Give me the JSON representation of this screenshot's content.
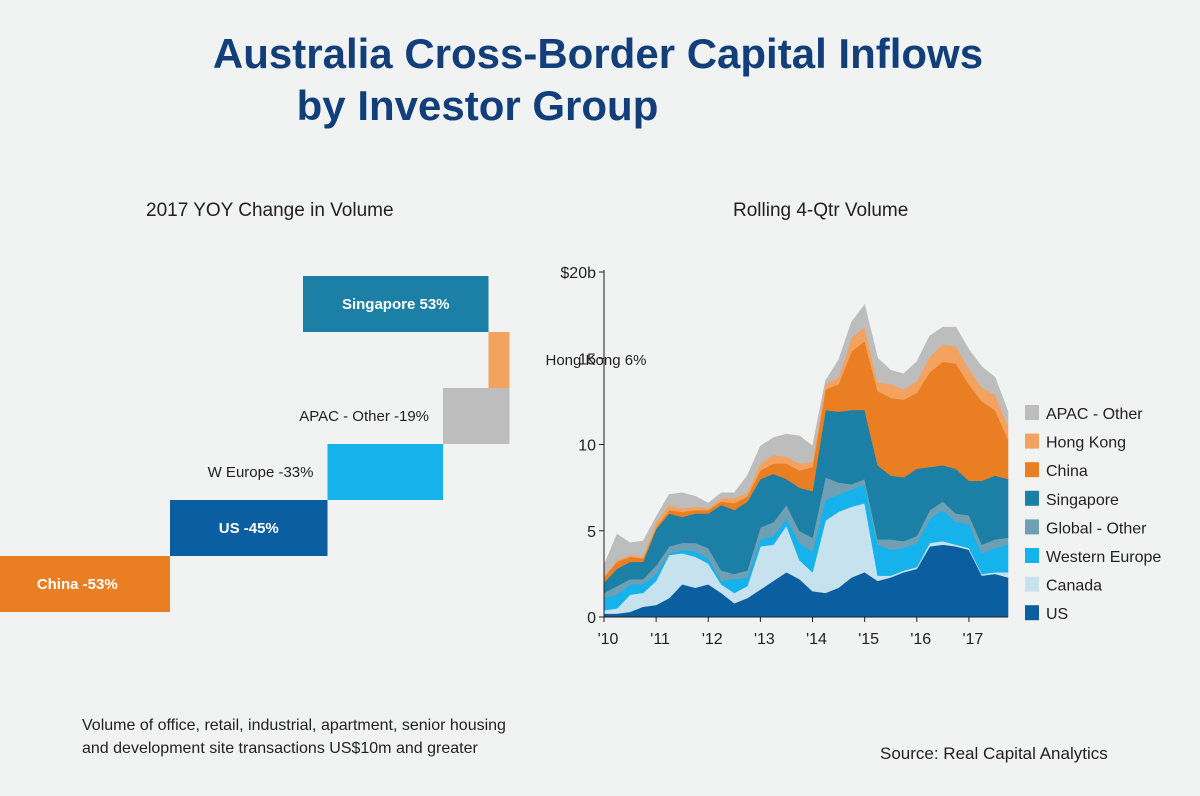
{
  "title": {
    "line1": "Australia Cross-Border Capital Inflows",
    "line2": "by Investor Group"
  },
  "footnote": {
    "line1": "Volume of office, retail, industrial, apartment, senior housing",
    "line2": "and development site transactions US$10m and greater"
  },
  "source": "Source: Real Capital Analytics",
  "chart_data": [
    {
      "type": "bar",
      "title": "2017 YOY Change in Volume",
      "orientation": "horizontal-waterfall",
      "bars": [
        {
          "name": "Singapore",
          "label": "Singapore  53%",
          "value": 53,
          "color": "#1b7fa6",
          "label_position": "inside",
          "label_color": "#ffffff",
          "bold": true
        },
        {
          "name": "Hong Kong",
          "label": "Hong Kong  6%",
          "value": 6,
          "color": "#f3a35f",
          "label_position": "outside-right",
          "label_color": "#231f20",
          "bold": false
        },
        {
          "name": "APAC - Other",
          "label": "APAC - Other  -19%",
          "value": -19,
          "color": "#bdbdbd",
          "label_position": "outside-left",
          "label_color": "#231f20",
          "bold": false
        },
        {
          "name": "W Europe",
          "label": "W Europe  -33%",
          "value": -33,
          "color": "#16b2ec",
          "label_position": "outside-left",
          "label_color": "#231f20",
          "bold": false
        },
        {
          "name": "US",
          "label": "US  -45%",
          "value": -45,
          "color": "#0b5fa0",
          "label_position": "inside",
          "label_color": "#ffffff",
          "bold": true
        },
        {
          "name": "China",
          "label": "China  -53%",
          "value": -53,
          "color": "#e97e22",
          "label_position": "inside",
          "label_color": "#ffffff",
          "bold": true
        }
      ]
    },
    {
      "type": "area",
      "stacked": true,
      "title": "Rolling 4-Qtr Volume",
      "xlabel": "",
      "ylabel": "",
      "ylim": [
        0,
        20
      ],
      "yticks": [
        0,
        5,
        10,
        15,
        20
      ],
      "ytick_labels": [
        "0",
        "5",
        "10",
        "15",
        "$20b"
      ],
      "xlim": [
        2010.0,
        2017.75
      ],
      "xticks": [
        2010,
        2011,
        2012,
        2013,
        2014,
        2015,
        2016,
        2017
      ],
      "xtick_labels": [
        "'10",
        "'11",
        "'12",
        "'13",
        "'14",
        "'15",
        "'16",
        "'17"
      ],
      "grid": false,
      "legend": "right",
      "x": [
        2010.0,
        2010.25,
        2010.5,
        2010.75,
        2011.0,
        2011.25,
        2011.5,
        2011.75,
        2012.0,
        2012.25,
        2012.5,
        2012.75,
        2013.0,
        2013.25,
        2013.5,
        2013.75,
        2014.0,
        2014.25,
        2014.5,
        2014.75,
        2015.0,
        2015.25,
        2015.5,
        2015.75,
        2016.0,
        2016.25,
        2016.5,
        2016.75,
        2017.0,
        2017.25,
        2017.5,
        2017.75
      ],
      "series": [
        {
          "name": "US",
          "color": "#0b5fa0",
          "values": [
            0.2,
            0.2,
            0.3,
            0.6,
            0.7,
            1.1,
            1.9,
            1.7,
            1.9,
            1.4,
            0.8,
            1.1,
            1.6,
            2.1,
            2.6,
            2.2,
            1.5,
            1.4,
            1.7,
            2.3,
            2.6,
            2.1,
            2.3,
            2.6,
            2.8,
            4.1,
            4.2,
            4.1,
            3.9,
            2.4,
            2.5,
            2.3
          ]
        },
        {
          "name": "Canada",
          "color": "#c5e2ee",
          "values": [
            0.2,
            0.3,
            1.0,
            0.8,
            1.4,
            2.5,
            1.8,
            1.8,
            1.2,
            0.5,
            0.6,
            0.7,
            2.5,
            2.1,
            2.7,
            1.1,
            1.1,
            4.2,
            4.4,
            4.1,
            4.0,
            0.3,
            0.1,
            0.1,
            0.1,
            0.2,
            0.2,
            0.1,
            0.1,
            0.1,
            0.1,
            0.3
          ]
        },
        {
          "name": "Western Europe",
          "color": "#16b2ec",
          "values": [
            0.7,
            0.8,
            0.6,
            0.5,
            0.4,
            0.1,
            0.2,
            0.3,
            0.3,
            0.2,
            0.8,
            0.5,
            0.4,
            0.5,
            0.4,
            1.0,
            1.2,
            1.2,
            1.0,
            1.0,
            1.1,
            1.8,
            1.5,
            1.3,
            1.4,
            1.4,
            1.8,
            1.3,
            1.4,
            1.2,
            1.4,
            1.6
          ]
        },
        {
          "name": "Global - Other",
          "color": "#6f9fb2",
          "values": [
            0.3,
            0.5,
            0.3,
            0.3,
            0.5,
            0.4,
            0.4,
            0.5,
            0.6,
            0.6,
            0.3,
            0.4,
            0.7,
            0.8,
            0.8,
            0.7,
            0.8,
            1.3,
            0.7,
            0.3,
            0.3,
            0.3,
            0.6,
            0.4,
            0.4,
            0.5,
            0.5,
            0.5,
            0.5,
            0.5,
            0.5,
            0.4
          ]
        },
        {
          "name": "Singapore",
          "color": "#1b7fa6",
          "values": [
            0.6,
            1.0,
            1.0,
            1.0,
            2.1,
            1.9,
            1.5,
            1.7,
            2.0,
            3.8,
            3.7,
            4.0,
            2.8,
            2.8,
            1.5,
            2.5,
            2.7,
            3.9,
            4.1,
            4.3,
            4.0,
            4.3,
            3.7,
            3.7,
            3.9,
            2.5,
            2.1,
            2.6,
            2.0,
            3.7,
            3.7,
            3.4
          ]
        },
        {
          "name": "China",
          "color": "#e97e22",
          "values": [
            0.3,
            0.4,
            0.3,
            0.2,
            0.1,
            0.2,
            0.3,
            0.2,
            0.2,
            0.2,
            0.4,
            0.3,
            0.5,
            0.6,
            0.9,
            1.0,
            1.4,
            1.2,
            1.6,
            3.4,
            4.0,
            4.3,
            4.5,
            4.5,
            4.4,
            5.5,
            6.0,
            6.1,
            5.6,
            4.6,
            3.8,
            2.3
          ]
        },
        {
          "name": "Hong Kong",
          "color": "#f3a35f",
          "values": [
            0.1,
            0.1,
            0.1,
            0.1,
            0.3,
            0.3,
            0.2,
            0.2,
            0.1,
            0.2,
            0.3,
            0.2,
            0.4,
            0.5,
            0.4,
            0.4,
            0.3,
            0.3,
            0.4,
            0.8,
            0.8,
            0.5,
            0.8,
            0.6,
            0.7,
            0.9,
            1.0,
            1.0,
            0.9,
            0.8,
            0.9,
            0.8
          ]
        },
        {
          "name": "APAC - Other",
          "color": "#bdbdbd",
          "values": [
            0.6,
            1.5,
            0.7,
            0.9,
            0.3,
            0.6,
            0.9,
            0.6,
            0.3,
            0.3,
            0.3,
            1.0,
            1.0,
            1.0,
            1.3,
            1.6,
            0.9,
            0.2,
            1.0,
            0.9,
            1.3,
            1.4,
            0.8,
            0.9,
            1.1,
            1.2,
            1.0,
            1.1,
            1.1,
            1.2,
            1.0,
            0.8
          ]
        }
      ],
      "legend_order": [
        "APAC - Other",
        "Hong Kong",
        "China",
        "Singapore",
        "Global - Other",
        "Western Europe",
        "Canada",
        "US"
      ]
    }
  ]
}
